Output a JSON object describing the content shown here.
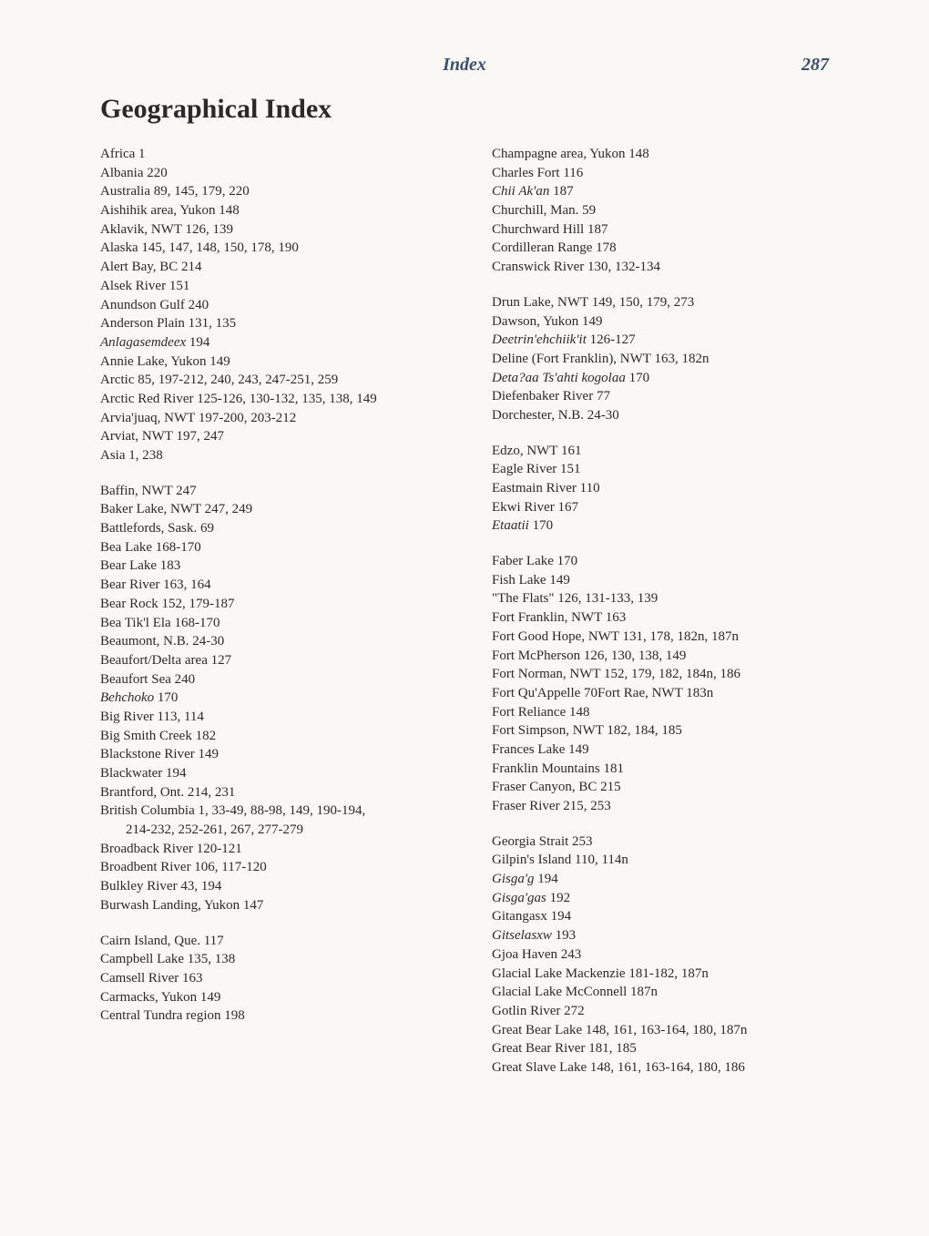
{
  "header": {
    "title": "Index",
    "page_number": "287"
  },
  "main_title": "Geographical Index",
  "left_column": [
    {
      "text": "Africa  1"
    },
    {
      "text": "Albania  220"
    },
    {
      "text": "Australia  89, 145, 179, 220"
    },
    {
      "text": "Aishihik area, Yukon  148"
    },
    {
      "text": "Aklavik, NWT  126, 139"
    },
    {
      "text": "Alaska  145, 147, 148, 150, 178, 190"
    },
    {
      "text": "Alert Bay, BC  214"
    },
    {
      "text": "Alsek River  151"
    },
    {
      "text": "Anundson Gulf  240"
    },
    {
      "text": "Anderson Plain  131, 135"
    },
    {
      "text": "Anlagasemdeex  194",
      "italic_prefix": "Anlagasemdeex",
      "plain_suffix": "  194"
    },
    {
      "text": "Annie Lake, Yukon  149"
    },
    {
      "text": "Arctic  85, 197-212, 240, 243, 247-251, 259"
    },
    {
      "text": "Arctic Red River  125-126, 130-132, 135, 138, 149"
    },
    {
      "text": "Arvia'juaq, NWT  197-200, 203-212"
    },
    {
      "text": "Arviat, NWT  197, 247"
    },
    {
      "text": "Asia  1, 238"
    },
    {
      "gap": true
    },
    {
      "text": "Baffin, NWT  247"
    },
    {
      "text": "Baker Lake, NWT 247, 249"
    },
    {
      "text": "Battlefords, Sask.  69"
    },
    {
      "text": "Bea Lake  168-170"
    },
    {
      "text": "Bear Lake  183"
    },
    {
      "text": "Bear River  163, 164"
    },
    {
      "text": "Bear Rock  152, 179-187"
    },
    {
      "text": "Bea Tik'l Ela  168-170"
    },
    {
      "text": "Beaumont, N.B.  24-30"
    },
    {
      "text": "Beaufort/Delta area  127"
    },
    {
      "text": "Beaufort Sea 240"
    },
    {
      "text": "Behchoko  170",
      "italic_prefix": "Behchoko",
      "plain_suffix": "  170"
    },
    {
      "text": "Big River 113, 114"
    },
    {
      "text": "Big Smith Creek  182"
    },
    {
      "text": "Blackstone River  149"
    },
    {
      "text": "Blackwater 194"
    },
    {
      "text": "Brantford, Ont. 214, 231"
    },
    {
      "text": "British Columbia  1, 33-49, 88-98, 149, 190-194,"
    },
    {
      "text": "214-232, 252-261, 267, 277-279",
      "indent": true
    },
    {
      "text": "Broadback River  120-121"
    },
    {
      "text": "Broadbent River  106, 117-120"
    },
    {
      "text": "Bulkley River 43, 194"
    },
    {
      "text": "Burwash Landing, Yukon  147"
    },
    {
      "gap": true
    },
    {
      "text": "Cairn Island, Que. 117"
    },
    {
      "text": "Campbell Lake  135, 138"
    },
    {
      "text": "Camsell River 163"
    },
    {
      "text": "Carmacks, Yukon  149"
    },
    {
      "text": "Central Tundra region  198"
    }
  ],
  "right_column": [
    {
      "text": "Champagne area, Yukon  148"
    },
    {
      "text": "Charles Fort  116"
    },
    {
      "text": "Chii Ak'an  187",
      "italic_prefix": "Chii Ak'an",
      "plain_suffix": "  187"
    },
    {
      "text": "Churchill, Man. 59"
    },
    {
      "text": "Churchward Hill  187"
    },
    {
      "text": "Cordilleran Range 178"
    },
    {
      "text": "Cranswick River  130, 132-134"
    },
    {
      "gap": true
    },
    {
      "text": "Drun Lake, NWT  149, 150, 179, 273"
    },
    {
      "text": "Dawson, Yukon  149"
    },
    {
      "text": "Deetrin'ehchiik'it  126-127",
      "italic_prefix": "Deetrin'ehchiik'it",
      "plain_suffix": "  126-127"
    },
    {
      "text": "Deline (Fort Franklin), NWT  163, 182n"
    },
    {
      "text": "Deta?aa Ts'ahti kogolaa  170",
      "italic_prefix": "Deta?aa Ts'ahti kogolaa",
      "plain_suffix": "  170"
    },
    {
      "text": "Diefenbaker River 77"
    },
    {
      "text": "Dorchester, N.B. 24-30"
    },
    {
      "gap": true
    },
    {
      "text": "Edzo, NWT  161"
    },
    {
      "text": "Eagle River  151"
    },
    {
      "text": "Eastmain River  110"
    },
    {
      "text": "Ekwi River  167"
    },
    {
      "text": "Etaatii  170",
      "italic_prefix": "Etaatii",
      "plain_suffix": "  170"
    },
    {
      "gap": true
    },
    {
      "text": "Faber Lake  170"
    },
    {
      "text": "Fish Lake  149"
    },
    {
      "text": "\"The Flats\"  126, 131-133, 139"
    },
    {
      "text": "Fort Franklin, NWT  163"
    },
    {
      "text": "Fort Good Hope, NWT  131, 178, 182n, 187n"
    },
    {
      "text": "Fort McPherson  126, 130, 138, 149"
    },
    {
      "text": "Fort Norman, NWT  152, 179, 182, 184n, 186"
    },
    {
      "text": "Fort Qu'Appelle  70Fort Rae, NWT  183n"
    },
    {
      "text": "Fort Reliance  148"
    },
    {
      "text": "Fort Simpson, NWT  182, 184, 185"
    },
    {
      "text": "Frances Lake  149"
    },
    {
      "text": "Franklin Mountains  181"
    },
    {
      "text": "Fraser Canyon, BC  215"
    },
    {
      "text": "Fraser River  215, 253"
    },
    {
      "gap": true
    },
    {
      "text": "Georgia Strait  253"
    },
    {
      "text": "Gilpin's Island  110, 114n"
    },
    {
      "text": "Gisga'g  194",
      "italic_prefix": "Gisga'g",
      "plain_suffix": "  194"
    },
    {
      "text": "Gisga'gas  192",
      "italic_prefix": "Gisga'gas",
      "plain_suffix": "  192"
    },
    {
      "text": "Gitangasx  194"
    },
    {
      "text": "Gitselasxw  193",
      "italic_prefix": "Gitselasxw",
      "plain_suffix": "  193"
    },
    {
      "text": "Gjoa Haven  243"
    },
    {
      "text": "Glacial Lake Mackenzie  181-182, 187n"
    },
    {
      "text": "Glacial Lake McConnell  187n"
    },
    {
      "text": "Gotlin River  272"
    },
    {
      "text": "Great Bear Lake  148, 161, 163-164, 180, 187n"
    },
    {
      "text": "Great Bear River  181, 185"
    },
    {
      "text": "Great Slave Lake  148, 161, 163-164, 180, 186"
    }
  ]
}
